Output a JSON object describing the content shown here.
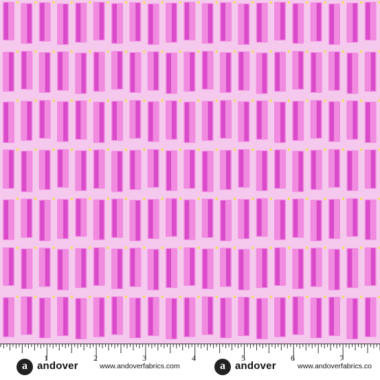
{
  "fabric": {
    "background_color": "#f5c8ee",
    "bar_color_light": "#f08be0",
    "bar_color_dark": "#d63fc6",
    "dot_color": "#f1e23a",
    "pattern_rows": 7,
    "bars_per_row": 21
  },
  "ruler": {
    "numbers": [
      "1",
      "2",
      "3",
      "4",
      "5",
      "6",
      "7"
    ],
    "brand_logo": "a",
    "brand_name": "andover",
    "website": "www.andoverfabrics.com",
    "website_trailing": "www.andoverfabrics.co"
  }
}
